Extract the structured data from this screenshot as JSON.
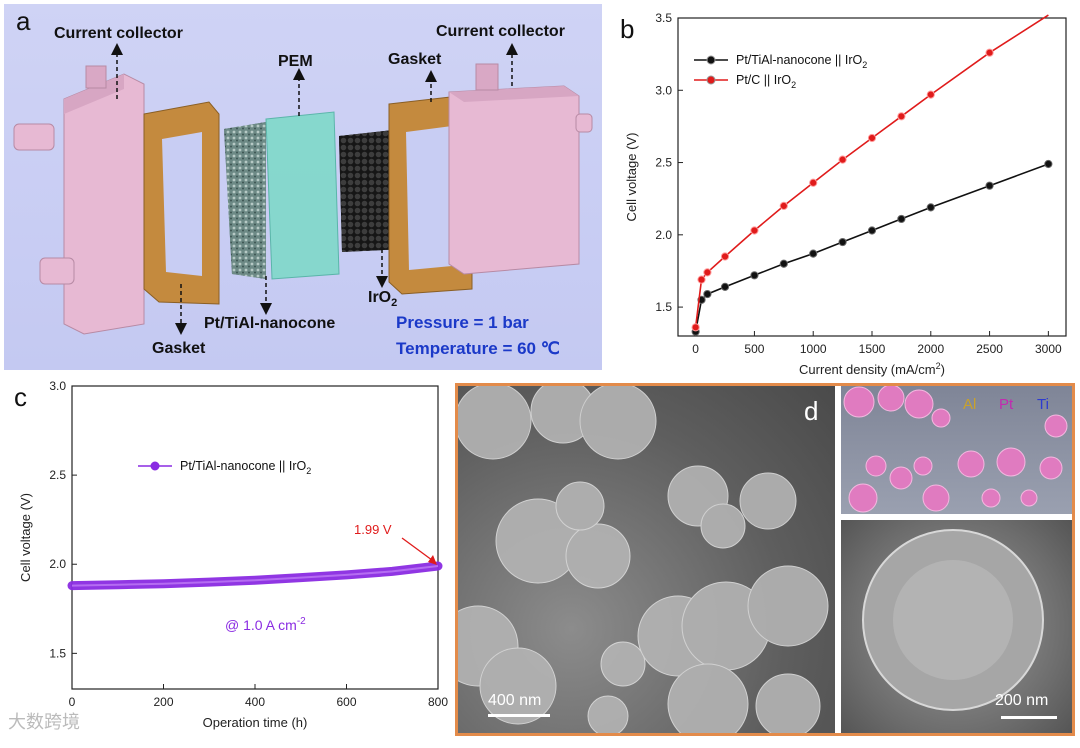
{
  "panels": {
    "a": {
      "label": "a",
      "labels": {
        "cc_left": "Current collector",
        "cc_right": "Current collector",
        "pem": "PEM",
        "gasket_top": "Gasket",
        "gasket_bottom": "Gasket",
        "cathode": "Pt/TiAl-nanocone",
        "anode": "IrO",
        "anode_sub": "2",
        "pressure": "Pressure = 1 bar",
        "temperature": "Temperature = 60 ℃"
      },
      "colors": {
        "background": "#c8cdf3",
        "collector": "#e7b9d3",
        "gasket": "#c48a3e",
        "pem": "#7fd9c9",
        "annotation_blue": "#1b39c8"
      }
    },
    "b": {
      "label": "b"
    },
    "c": {
      "label": "c"
    },
    "d": {
      "label": "d",
      "eds": {
        "al": "Al",
        "pt": "Pt",
        "ti": "Ti"
      },
      "scalebars": {
        "main": "400 nm",
        "inset": "200 nm"
      }
    }
  },
  "chart_data": [
    {
      "type": "line",
      "panel": "b",
      "xlabel": "Current density (mA/cm",
      "xlabel_sup": "2",
      "xlabel_tail": ")",
      "ylabel": "Cell voltage (V)",
      "xlim": [
        -150,
        3150
      ],
      "ylim": [
        1.3,
        3.5
      ],
      "xticks": [
        0,
        500,
        1000,
        1500,
        2000,
        2500,
        3000
      ],
      "yticks": [
        1.5,
        2.0,
        2.5,
        3.0,
        3.5
      ],
      "ytick_labels": [
        "1.5",
        "2.0",
        "2.5",
        "3.0",
        "3.5"
      ],
      "legend_position": "top-left",
      "series": [
        {
          "name": "Pt/TiAl-nanocone || IrO",
          "name_sub": "2",
          "color": "#111111",
          "x": [
            0,
            50,
            100,
            250,
            500,
            750,
            1000,
            1250,
            1500,
            1750,
            2000,
            2500,
            3000
          ],
          "y": [
            1.33,
            1.55,
            1.59,
            1.64,
            1.72,
            1.8,
            1.87,
            1.95,
            2.03,
            2.11,
            2.19,
            2.34,
            2.49
          ]
        },
        {
          "name": "Pt/C || IrO",
          "name_sub": "2",
          "color": "#e01b1b",
          "x": [
            0,
            50,
            100,
            250,
            500,
            750,
            1000,
            1250,
            1500,
            1750,
            2000,
            2500,
            3000
          ],
          "y": [
            1.36,
            1.69,
            1.74,
            1.85,
            2.03,
            2.2,
            2.36,
            2.52,
            2.67,
            2.82,
            2.97,
            3.26,
            3.53
          ]
        }
      ]
    },
    {
      "type": "line",
      "panel": "c",
      "xlabel": "Operation time (h)",
      "ylabel": "Cell voltage (V)",
      "xlim": [
        0,
        800
      ],
      "ylim": [
        1.3,
        3.0
      ],
      "xticks": [
        0,
        200,
        400,
        600,
        800
      ],
      "yticks": [
        1.5,
        2.0,
        2.5,
        3.0
      ],
      "ytick_labels": [
        "1.5",
        "2.0",
        "2.5",
        "3.0"
      ],
      "legend_position": "upper-left",
      "series": [
        {
          "name": "Pt/TiAl-nanocone || IrO",
          "name_sub": "2",
          "color": "#8a2be2",
          "x": [
            0,
            100,
            200,
            300,
            400,
            500,
            600,
            700,
            800
          ],
          "y": [
            1.88,
            1.885,
            1.89,
            1.9,
            1.91,
            1.925,
            1.94,
            1.96,
            1.99
          ]
        }
      ],
      "annotations": {
        "end_value": "1.99 V",
        "condition": "@ 1.0 A cm",
        "condition_sup": "-2"
      }
    }
  ],
  "watermark": "大数跨境"
}
